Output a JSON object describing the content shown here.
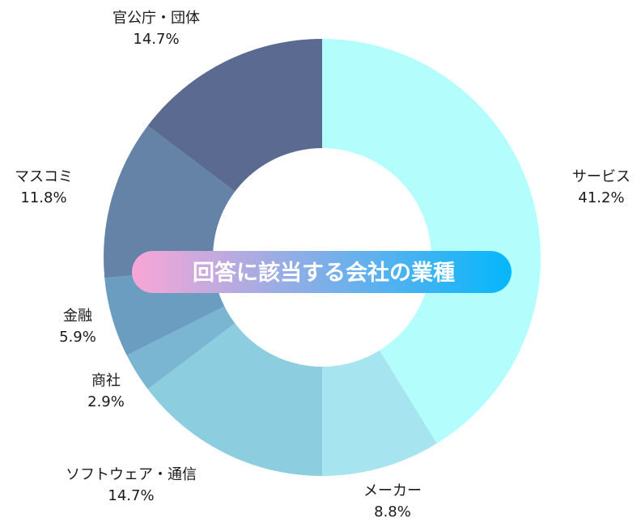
{
  "chart_data": {
    "type": "pie",
    "title": "回答に該当する会社の業種",
    "donut": true,
    "slices": [
      {
        "label": "サービス",
        "value": 41.2,
        "display": "41.2%",
        "color": "#b3fdfd"
      },
      {
        "label": "メーカー",
        "value": 8.8,
        "display": "8.8%",
        "color": "#a6e4f0"
      },
      {
        "label": "ソフトウェア・通信",
        "value": 14.7,
        "display": "14.7%",
        "color": "#8dcde0"
      },
      {
        "label": "商社",
        "value": 2.9,
        "display": "2.9%",
        "color": "#7ab6d1"
      },
      {
        "label": "金融",
        "value": 5.9,
        "display": "5.9%",
        "color": "#6b9dc0"
      },
      {
        "label": "マスコミ",
        "value": 11.8,
        "display": "11.8%",
        "color": "#6582a7"
      },
      {
        "label": "官公庁・団体",
        "value": 14.7,
        "display": "14.7%",
        "color": "#5b6a90"
      }
    ],
    "banner_gradient": [
      "#f9a6d6",
      "#04b7fb"
    ]
  }
}
